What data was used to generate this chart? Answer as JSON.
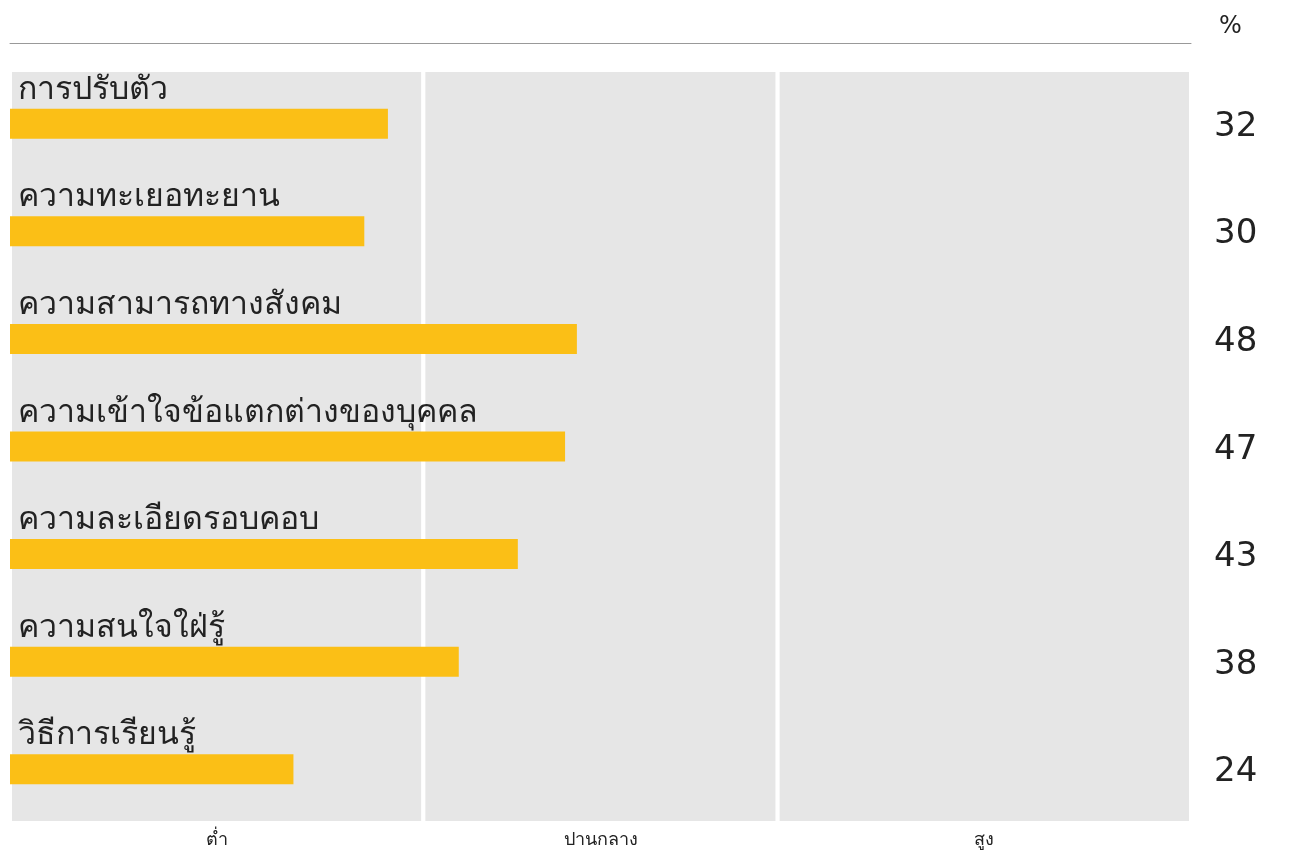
{
  "chart_data": {
    "type": "bar",
    "orientation": "horizontal",
    "xlabel": "%",
    "categories": [
      "การปรับตัว",
      "ความทะเยอทะยาน",
      "ความสามารถทางสังคม",
      "ความเข้าใจข้อแตกต่างของบุคคล",
      "ความละเอียดรอบคอบ",
      "ความสนใจใฝ่รู้",
      "วิธีการเรียนรู้"
    ],
    "values": [
      32,
      30,
      48,
      47,
      43,
      38,
      24
    ],
    "color": "#fbbf16",
    "data_labels": true,
    "xlim": [
      0,
      100
    ],
    "bands": [
      {
        "axis": "x",
        "from": 0,
        "to": 35,
        "label": "ต่ำ",
        "color": "#e6e6e6"
      },
      {
        "axis": "x",
        "from": 35,
        "to": 65,
        "label": "ปานกลาง",
        "color": "#e6e6e6"
      },
      {
        "axis": "x",
        "from": 65,
        "to": 100,
        "label": "สูง",
        "color": "#e6e6e6"
      }
    ]
  }
}
